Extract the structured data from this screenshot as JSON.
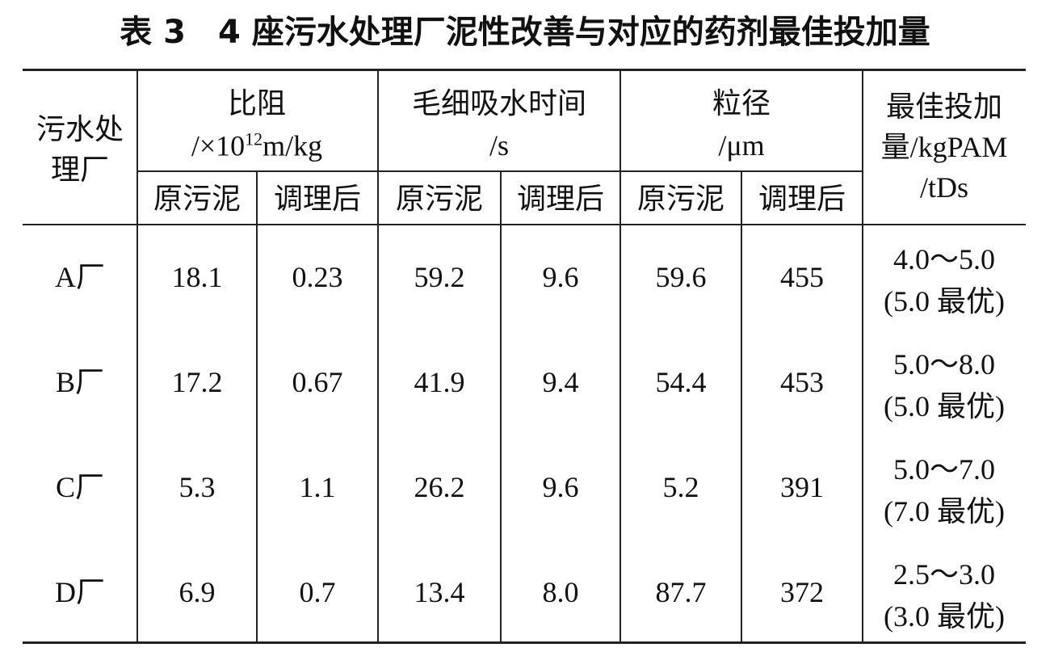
{
  "title": "表 3　4 座污水处理厂泥性改善与对应的药剂最佳投加量",
  "table": {
    "header": {
      "plant": [
        "污水处",
        "理厂"
      ],
      "resistance": {
        "name": "比阻",
        "unit_pre": "/×10",
        "unit_sup": "12",
        "unit_post": "m/kg"
      },
      "cst": {
        "name": "毛细吸水时间",
        "unit": "/s"
      },
      "size": {
        "name": "粒径",
        "unit": "/μm"
      },
      "dose": [
        "最佳投加",
        "量/kgPAM",
        "/tDs"
      ],
      "sub": [
        "原污泥",
        "调理后",
        "原污泥",
        "调理后",
        "原污泥",
        "调理后"
      ]
    },
    "rows": [
      [
        "A厂",
        "18.1",
        "0.23",
        "59.2",
        "9.6",
        "59.6",
        "455",
        [
          "4.0～5.0",
          "(5.0 最优)"
        ]
      ],
      [
        "B厂",
        "17.2",
        "0.67",
        "41.9",
        "9.4",
        "54.4",
        "453",
        [
          "5.0～8.0",
          "(5.0 最优)"
        ]
      ],
      [
        "C厂",
        "5.3",
        "1.1",
        "26.2",
        "9.6",
        "5.2",
        "391",
        [
          "5.0～7.0",
          "(7.0 最优)"
        ]
      ],
      [
        "D厂",
        "6.9",
        "0.7",
        "13.4",
        "8.0",
        "87.7",
        "372",
        [
          "2.5～3.0",
          "(3.0 最优)"
        ]
      ]
    ]
  }
}
